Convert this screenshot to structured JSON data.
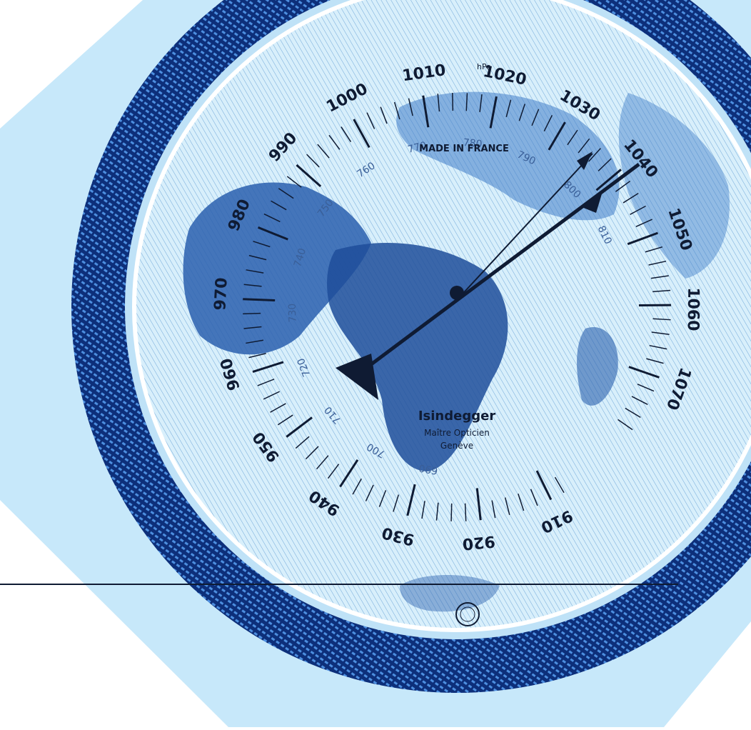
{
  "dial": {
    "hpa_labels": [
      "910",
      "920",
      "930",
      "940",
      "950",
      "960",
      "970",
      "980",
      "990",
      "1000",
      "1010",
      "1020",
      "1030",
      "1040",
      "1050",
      "1060",
      "1070"
    ],
    "hpa_unit": "hPa",
    "mmhg_labels": [
      "690",
      "700",
      "710",
      "720",
      "730",
      "740",
      "750",
      "760",
      "770",
      "780",
      "790",
      "800",
      "810"
    ],
    "made_in": "MADE IN FRANCE",
    "maker": "Isindegger",
    "maker_sub1": "Maître Opticien",
    "maker_sub2": "Genève"
  },
  "colors": {
    "background": "#ffffff",
    "octagon": "#c7e8fa",
    "dial_face": "#d8effb",
    "map": "#1f4e9a",
    "rim_dark": "#0d2f7a",
    "needle": "#0f1b33"
  }
}
